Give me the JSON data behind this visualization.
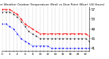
{
  "title": "Milwaukee Weather Outdoor Temperature (Red) vs Dew Point (Blue) (24 Hours)",
  "background_color": "#ffffff",
  "grid_color": "#bbbbbb",
  "x_values": [
    0,
    1,
    2,
    3,
    4,
    5,
    6,
    7,
    8,
    9,
    10,
    11,
    12,
    13,
    14,
    15,
    16,
    17,
    18,
    19,
    20,
    21,
    22,
    23
  ],
  "temp_values": [
    57,
    57,
    57,
    56,
    55,
    53,
    51,
    50,
    49,
    48,
    47,
    47,
    47,
    47,
    47,
    47,
    47,
    47,
    47,
    47,
    47,
    47,
    47,
    46
  ],
  "dew_values": [
    51,
    51,
    50,
    49,
    47,
    45,
    44,
    43,
    42,
    42,
    42,
    42,
    42,
    41,
    41,
    41,
    41,
    41,
    41,
    41,
    41,
    41,
    41,
    41
  ],
  "feels_values": [
    56,
    56,
    56,
    55,
    54,
    52,
    50,
    48,
    47,
    46,
    45,
    45,
    45,
    45,
    45,
    45,
    45,
    45,
    45,
    45,
    45,
    45,
    45,
    44
  ],
  "ylim": [
    40,
    58
  ],
  "yticks": [
    41,
    45,
    49,
    53,
    57
  ],
  "ytick_labels": [
    "41",
    "45",
    "49",
    "53",
    "57"
  ],
  "xlim": [
    0,
    23
  ],
  "xticks": [
    0,
    1,
    2,
    3,
    4,
    5,
    6,
    7,
    8,
    9,
    10,
    11,
    12,
    13,
    14,
    15,
    16,
    17,
    18,
    19,
    20,
    21,
    22,
    23
  ],
  "temp_color": "#ff0000",
  "dew_color": "#0000ff",
  "feels_color": "#000000",
  "title_fontsize": 3.2,
  "tick_fontsize": 3.5,
  "line_width": 0.7,
  "marker_size": 1.0
}
